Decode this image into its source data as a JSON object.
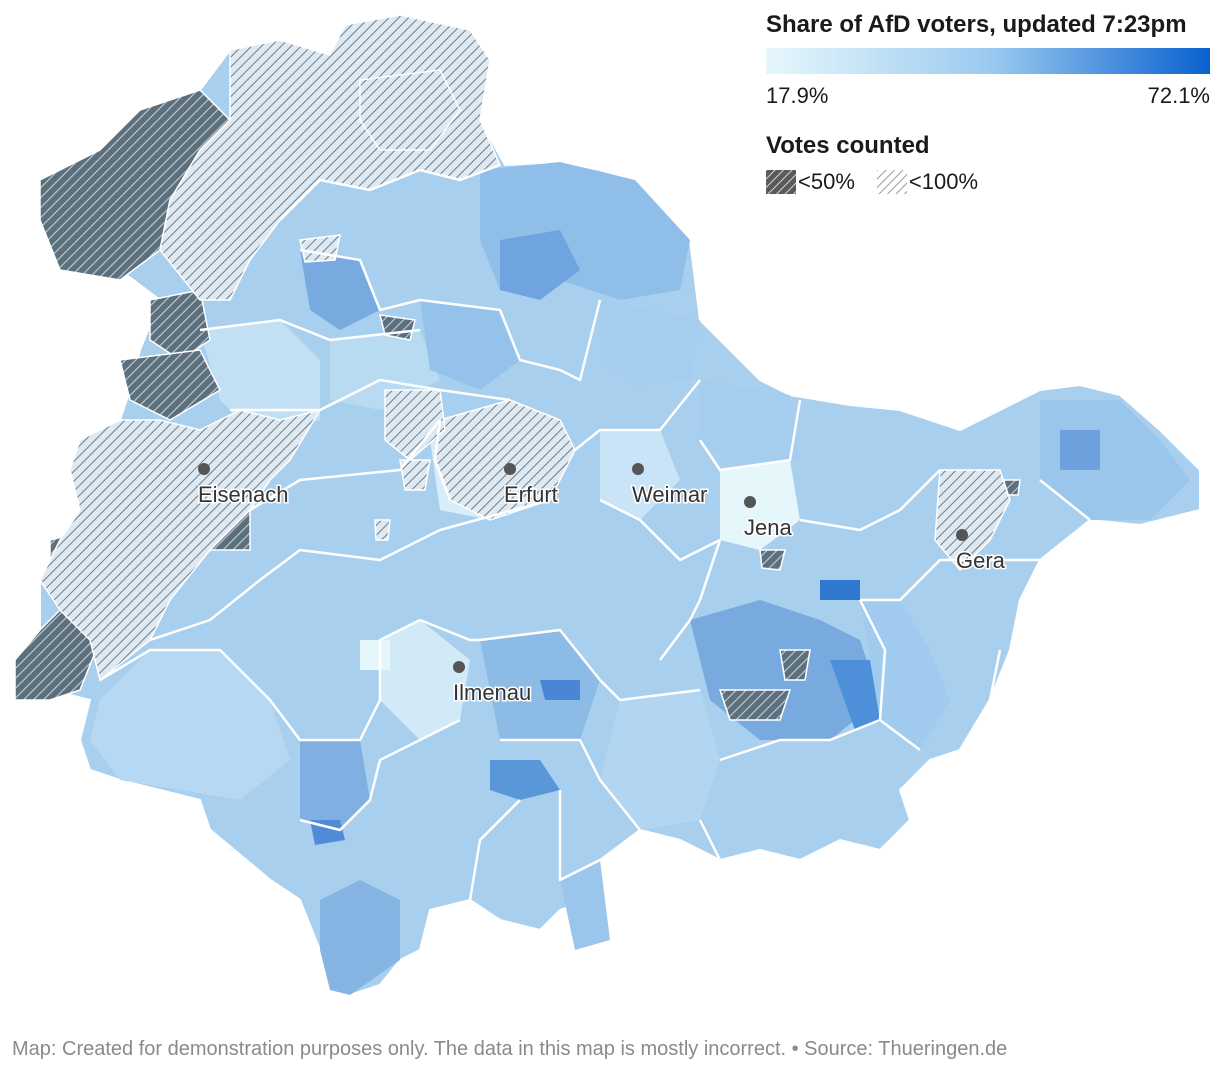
{
  "legend": {
    "title": "Share of AfD voters, updated 7:23pm",
    "min_label": "17.9%",
    "max_label": "72.1%",
    "min_value": 17.9,
    "max_value": 72.1,
    "color_low": "#e6f7fb",
    "color_high": "#0a61cf",
    "votes_title": "Votes counted",
    "hatch_items": [
      {
        "label": "<50%",
        "style": "dark-hatch",
        "color": "#546470"
      },
      {
        "label": "<100%",
        "style": "light-hatch",
        "color": "#8a96a0"
      }
    ]
  },
  "cities": [
    {
      "name": "Eisenach",
      "icon": "city-dot-icon"
    },
    {
      "name": "Erfurt",
      "icon": "city-dot-icon"
    },
    {
      "name": "Weimar",
      "icon": "city-dot-icon"
    },
    {
      "name": "Jena",
      "icon": "city-dot-icon"
    },
    {
      "name": "Gera",
      "icon": "city-dot-icon"
    },
    {
      "name": "Ilmenau",
      "icon": "city-dot-icon"
    }
  ],
  "footer": "Map: Created for demonstration purposes only. The data in this map is mostly incorrect. • Source: Thueringen.de",
  "colors": {
    "base_fill": "#a9cfee",
    "district_border": "#ffffff",
    "dot": "#555555"
  }
}
